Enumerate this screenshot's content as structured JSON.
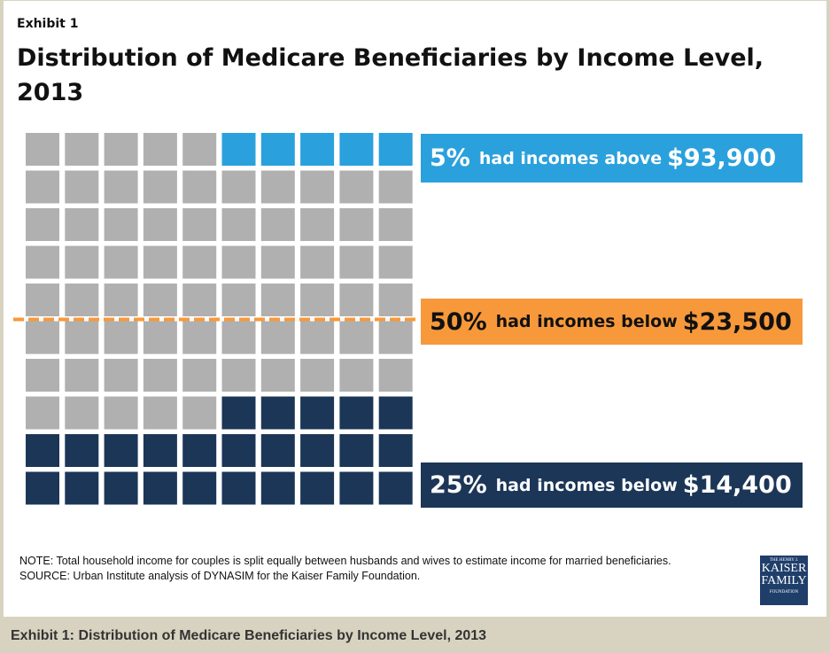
{
  "exhibit_label": "Exhibit 1",
  "caption": "Exhibit 1: Distribution of Medicare Beneficiaries by Income Level, 2013",
  "chart_data": {
    "type": "waffle",
    "title": "Distribution of Medicare Beneficiaries by Income Level, 2013",
    "grid": {
      "rows": 10,
      "cols": 10
    },
    "colors": {
      "above": "#2aa1dc",
      "middle": "#b0b0b0",
      "below": "#1b3657",
      "median_line": "#f7993a"
    },
    "segments": [
      {
        "key": "above",
        "percent": 5,
        "pct_label": "5%",
        "text": "had incomes above",
        "amount": "$93,900"
      },
      {
        "key": "median",
        "percent": 50,
        "pct_label": "50%",
        "text": "had incomes below",
        "amount": "$23,500"
      },
      {
        "key": "below",
        "percent": 25,
        "pct_label": "25%",
        "text": "had incomes below",
        "amount": "$14,400"
      }
    ]
  },
  "note": "NOTE:  Total household income for couples is split equally between husbands and wives to estimate income for married beneficiaries.",
  "source": "SOURCE: Urban Institute analysis of DYNASIM for the Kaiser Family Foundation.",
  "logo": {
    "line1": "THE HENRY J.",
    "line2": "KAISER",
    "line3": "FAMILY",
    "line4": "FOUNDATION"
  }
}
